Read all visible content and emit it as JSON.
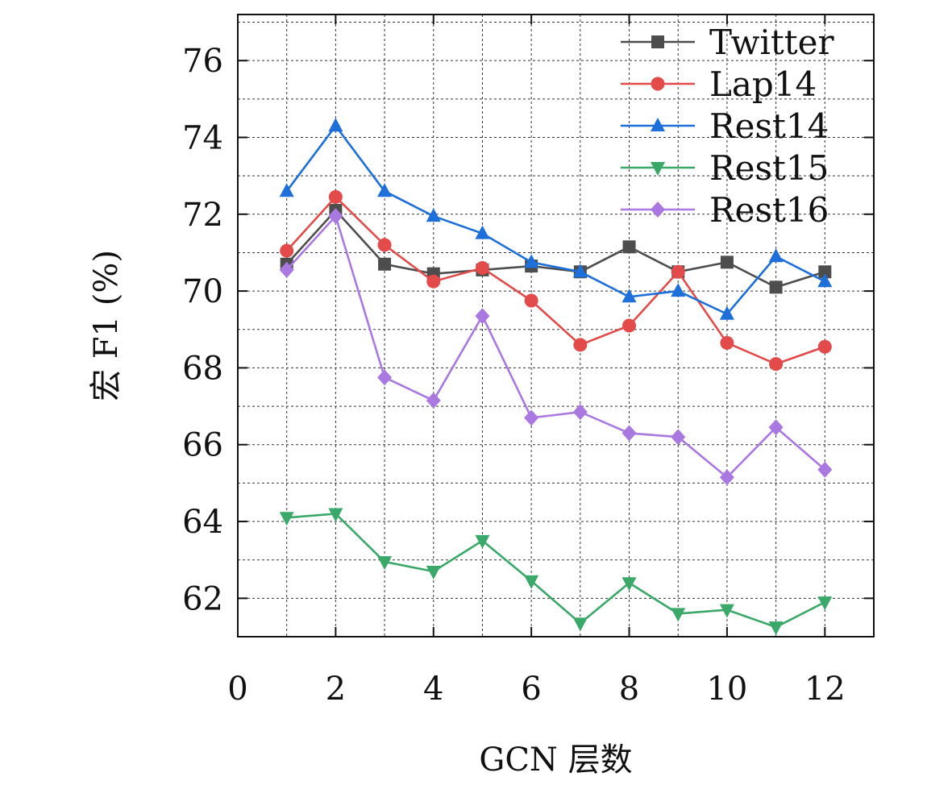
{
  "chart_data": {
    "type": "line",
    "xlabel": "GCN 层数",
    "ylabel": "宏 F1 (%)",
    "xlim": [
      0,
      13
    ],
    "ylim": [
      61,
      77.2
    ],
    "xticks": [
      0,
      2,
      4,
      6,
      8,
      10,
      12
    ],
    "yticks": [
      62,
      64,
      66,
      68,
      70,
      72,
      74,
      76
    ],
    "grid": true,
    "legend_position": "top-right",
    "x": [
      1,
      2,
      3,
      4,
      5,
      6,
      7,
      8,
      9,
      10,
      11,
      12
    ],
    "series": [
      {
        "name": "Twitter",
        "color": "#4d4d4d",
        "marker": "square",
        "values": [
          70.7,
          72.1,
          70.7,
          70.45,
          70.55,
          70.65,
          70.5,
          71.15,
          70.5,
          70.75,
          70.1,
          70.5
        ]
      },
      {
        "name": "Lap14",
        "color": "#e34a4a",
        "marker": "circle",
        "values": [
          71.05,
          72.45,
          71.2,
          70.25,
          70.6,
          69.75,
          68.6,
          69.1,
          70.5,
          68.65,
          68.1,
          68.55
        ]
      },
      {
        "name": "Rest14",
        "color": "#1e6fd9",
        "marker": "triangle-up",
        "values": [
          72.6,
          74.3,
          72.6,
          71.95,
          71.5,
          70.75,
          70.5,
          69.85,
          70.0,
          69.4,
          70.9,
          70.25
        ]
      },
      {
        "name": "Rest15",
        "color": "#3aa869",
        "marker": "triangle-down",
        "values": [
          64.1,
          64.2,
          62.95,
          62.7,
          63.5,
          62.45,
          61.35,
          62.4,
          61.6,
          61.7,
          61.25,
          61.9
        ]
      },
      {
        "name": "Rest16",
        "color": "#a978e0",
        "marker": "diamond",
        "values": [
          70.55,
          71.95,
          67.75,
          67.15,
          69.35,
          66.7,
          66.85,
          66.3,
          66.2,
          65.15,
          66.45,
          65.35
        ]
      }
    ]
  }
}
